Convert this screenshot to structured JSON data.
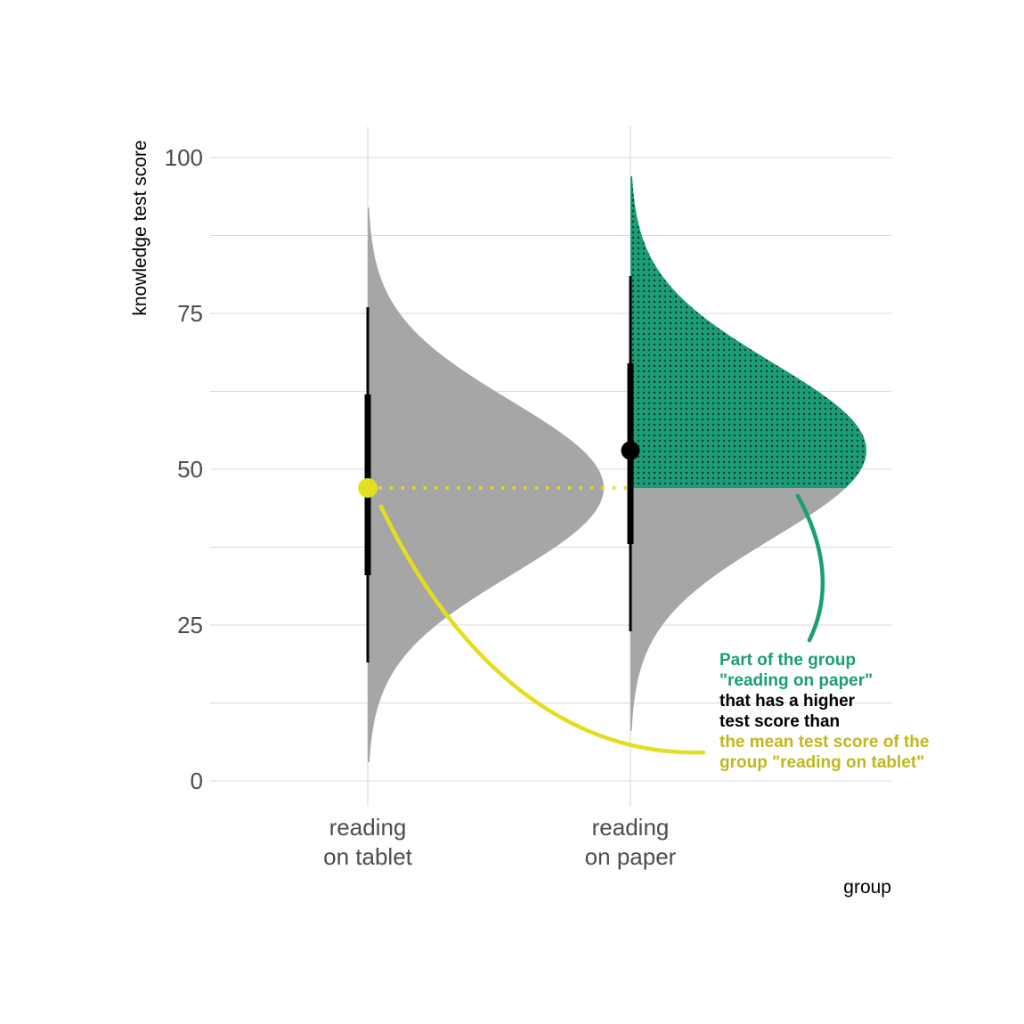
{
  "chart_data": {
    "type": "half-violin",
    "xlabel": "group",
    "ylabel": "knowledge test score",
    "ylim": [
      -4,
      105
    ],
    "y_ticks": [
      0,
      25,
      50,
      75,
      100
    ],
    "y_tick_labels": [
      "0",
      "25",
      "50",
      "75",
      "100"
    ],
    "grid": true,
    "categories": [
      {
        "lines": [
          "reading",
          "on tablet"
        ]
      },
      {
        "lines": [
          "reading",
          "on paper"
        ]
      }
    ],
    "series": [
      {
        "category": 0,
        "mean": 47,
        "sd": 14,
        "min": 3,
        "max": 92,
        "interval_66": [
          33,
          62
        ],
        "interval_95": [
          19,
          76
        ],
        "point_color": "#e5dd1f"
      },
      {
        "category": 1,
        "mean": 53,
        "sd": 14,
        "min": 8,
        "max": 97,
        "interval_66": [
          38,
          67
        ],
        "interval_95": [
          24,
          81
        ],
        "point_color": "#000000"
      }
    ],
    "highlight": {
      "category": 1,
      "above_value": 47,
      "color": "#1a9e77",
      "pattern": "dots"
    },
    "reference_line": {
      "value": 47,
      "from_category": 0,
      "to_category": 1,
      "color": "#e5dd1f",
      "style": "dotted"
    },
    "annotation": {
      "lines": [
        {
          "text": "Part of the group",
          "color": "#1a9e77"
        },
        {
          "text": "\"reading on paper\"",
          "color": "#1a9e77"
        },
        {
          "text": "that has a higher",
          "color": "#000000"
        },
        {
          "text": "test score than",
          "color": "#000000"
        },
        {
          "text": "the mean test score of the",
          "color": "#c2b61d"
        },
        {
          "text": "group \"reading on tablet\"",
          "color": "#c2b61d"
        }
      ]
    },
    "colors": {
      "density": "#a6a6a6",
      "highlight": "#1a9e77",
      "grid": "#d9d9d9",
      "interval": "#000000",
      "mean_tablet": "#e5dd1f",
      "mean_paper": "#000000"
    }
  }
}
